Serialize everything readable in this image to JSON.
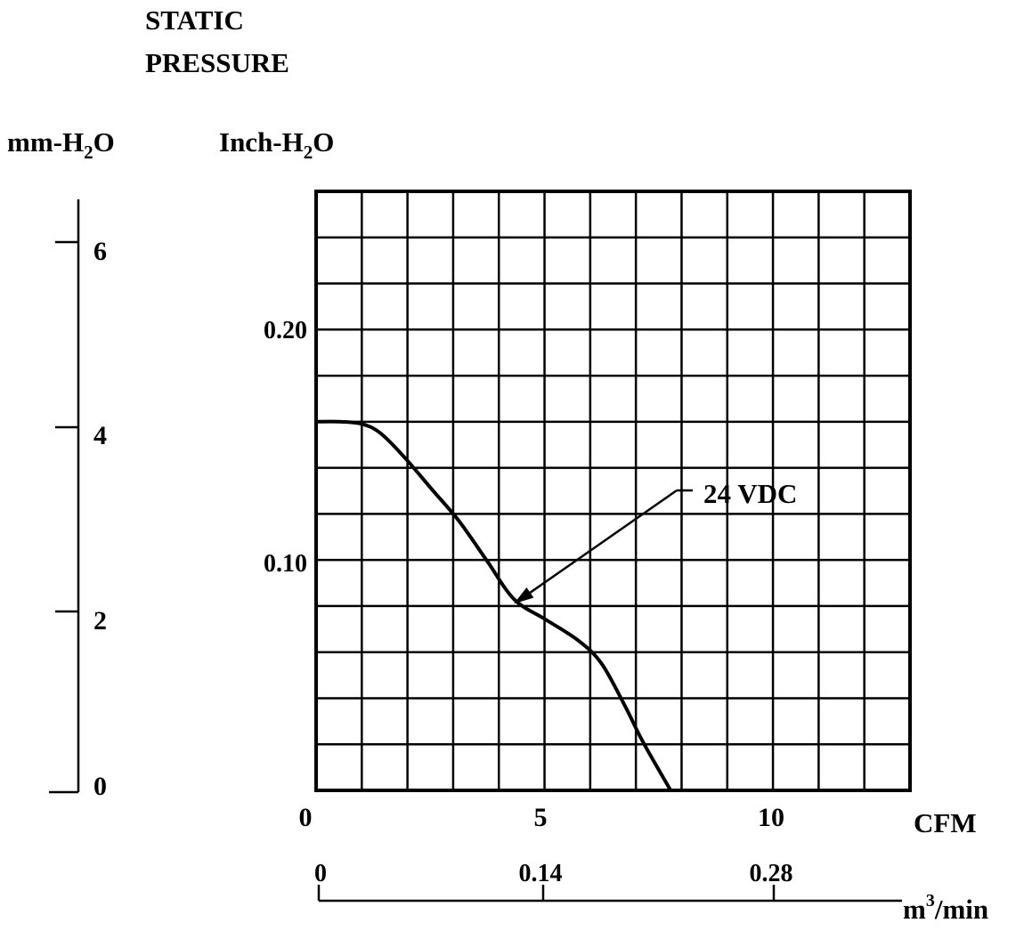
{
  "chart_data": {
    "type": "line",
    "title": {
      "line1": "STATIC",
      "line2": "PRESSURE"
    },
    "ylabel_mm": {
      "base": "mm-H",
      "sub": "2",
      "tail": "O"
    },
    "ylabel_inch": {
      "base": "Inch-H",
      "sub": "2",
      "tail": "O"
    },
    "xlabel_cfm": "CFM",
    "xlabel_m3": {
      "base": "m",
      "sup": "3",
      "tail": "/min"
    },
    "xlim": [
      0,
      12.9
    ],
    "ylim_inch": [
      0,
      0.26
    ],
    "grid": true,
    "mm_ticks": [
      "6",
      "4",
      "2",
      "0"
    ],
    "inch_ticks": [
      "0.20",
      "0.10"
    ],
    "cfm_ticks": [
      "0",
      "5",
      "10"
    ],
    "m3_ticks": [
      "0",
      "0.14",
      "0.28"
    ],
    "series": [
      {
        "name": "24 VDC",
        "x": [
          0,
          0.5,
          1.0,
          1.4,
          1.9,
          2.5,
          3.1,
          3.7,
          4.3,
          5.0,
          5.7,
          6.2,
          6.7,
          7.1,
          7.7
        ],
        "y": [
          0.16,
          0.16,
          0.159,
          0.155,
          0.145,
          0.131,
          0.117,
          0.1,
          0.083,
          0.074,
          0.065,
          0.055,
          0.037,
          0.021,
          0.0
        ]
      }
    ],
    "annotation": {
      "text": "24 VDC",
      "x": 4.3,
      "y": 0.081
    }
  }
}
